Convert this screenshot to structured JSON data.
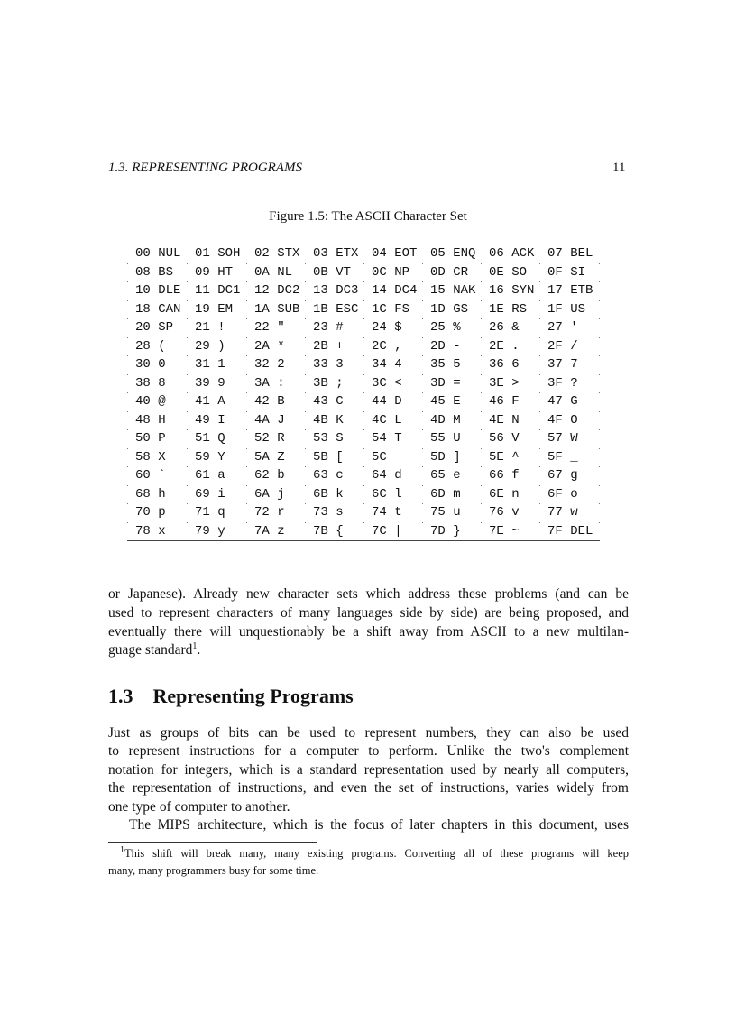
{
  "header": {
    "section": "1.3. REPRESENTING PROGRAMS",
    "page_number": "11"
  },
  "figure": {
    "caption": "Figure 1.5: The ASCII Character Set",
    "rows": [
      [
        "00 NUL",
        "01 SOH",
        "02 STX",
        "03 ETX",
        "04 EOT",
        "05 ENQ",
        "06 ACK",
        "07 BEL"
      ],
      [
        "08 BS",
        "09 HT",
        "0A NL",
        "0B VT",
        "0C NP",
        "0D CR",
        "0E SO",
        "0F SI"
      ],
      [
        "10 DLE",
        "11 DC1",
        "12 DC2",
        "13 DC3",
        "14 DC4",
        "15 NAK",
        "16 SYN",
        "17 ETB"
      ],
      [
        "18 CAN",
        "19 EM",
        "1A SUB",
        "1B ESC",
        "1C FS",
        "1D GS",
        "1E RS",
        "1F US"
      ],
      [
        "20 SP",
        "21 !",
        "22 \"",
        "23 #",
        "24 $",
        "25 %",
        "26 &",
        "27 '"
      ],
      [
        "28 (",
        "29 )",
        "2A *",
        "2B +",
        "2C ,",
        "2D -",
        "2E .",
        "2F /"
      ],
      [
        "30 0",
        "31 1",
        "32 2",
        "33 3",
        "34 4",
        "35 5",
        "36 6",
        "37 7"
      ],
      [
        "38 8",
        "39 9",
        "3A :",
        "3B ;",
        "3C <",
        "3D =",
        "3E >",
        "3F ?"
      ],
      [
        "40 @",
        "41 A",
        "42 B",
        "43 C",
        "44 D",
        "45 E",
        "46 F",
        "47 G"
      ],
      [
        "48 H",
        "49 I",
        "4A J",
        "4B K",
        "4C L",
        "4D M",
        "4E N",
        "4F O"
      ],
      [
        "50 P",
        "51 Q",
        "52 R",
        "53 S",
        "54 T",
        "55 U",
        "56 V",
        "57 W"
      ],
      [
        "58 X",
        "59 Y",
        "5A Z",
        "5B [",
        "5C",
        "5D ]",
        "5E ^",
        "5F _"
      ],
      [
        "60 `",
        "61 a",
        "62 b",
        "63 c",
        "64 d",
        "65 e",
        "66 f",
        "67 g"
      ],
      [
        "68 h",
        "69 i",
        "6A j",
        "6B k",
        "6C l",
        "6D m",
        "6E n",
        "6F o"
      ],
      [
        "70 p",
        "71 q",
        "72 r",
        "73 s",
        "74 t",
        "75 u",
        "76 v",
        "77 w"
      ],
      [
        "78 x",
        "79 y",
        "7A z",
        "7B {",
        "7C |",
        "7D }",
        "7E ~",
        "7F DEL"
      ]
    ]
  },
  "para1": [
    "or Japanese). Already new character sets which address these problems (and can be",
    "used to represent characters of many languages side by side) are being proposed, and",
    "eventually there will unquestionably be a shift away from ASCII to a new multilan-",
    "guage standard"
  ],
  "para1_footnote_mark": "1",
  "section": {
    "number": "1.3",
    "title": "Representing Programs"
  },
  "para2": [
    "Just as groups of bits can be used to represent numbers, they can also be used",
    "to represent instructions for a computer to perform. Unlike the two's complement",
    "notation for integers, which is a standard representation used by nearly all computers,",
    "the representation of instructions, and even the set of instructions, varies widely from",
    "one type of computer to another."
  ],
  "para3": [
    "The MIPS architecture, which is the focus of later chapters in this document, uses"
  ],
  "footnote": {
    "mark": "1",
    "lines": [
      "This shift will break many, many existing programs. Converting all of these programs will keep",
      "many, many programmers busy for some time."
    ]
  }
}
